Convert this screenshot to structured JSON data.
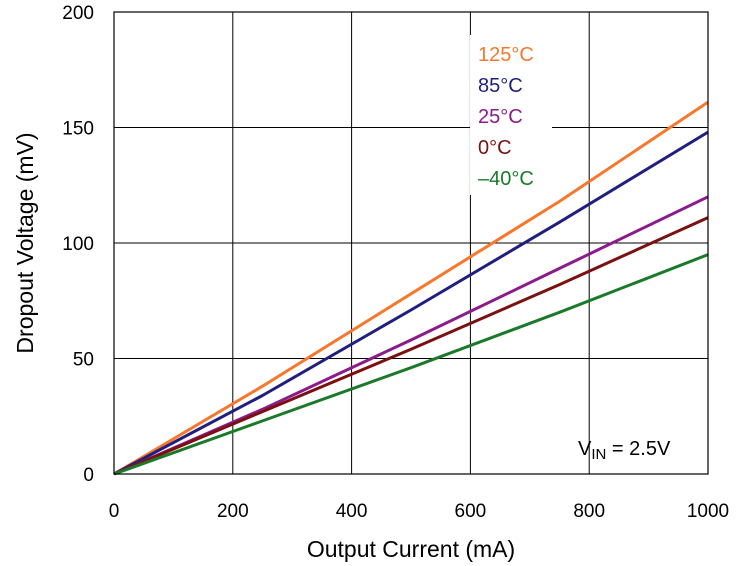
{
  "chart_data": {
    "type": "line",
    "title": "",
    "xlabel": "Output Current (mA)",
    "ylabel": "Dropout Voltage (mV)",
    "xlim": [
      0,
      1000
    ],
    "ylim": [
      0,
      200
    ],
    "xticks": [
      "0",
      "200",
      "400",
      "600",
      "800",
      "1000"
    ],
    "yticks": [
      "0",
      "50",
      "100",
      "150",
      "200"
    ],
    "grid": true,
    "legend_position": "top-right",
    "annotation": {
      "main": "V",
      "sub": "IN",
      "rest": " = 2.5V"
    },
    "series": [
      {
        "name": "125°C",
        "color": "#F7782D",
        "x": [
          0,
          250,
          500,
          750,
          1000
        ],
        "y": [
          0,
          38,
          78,
          118,
          161
        ]
      },
      {
        "name": "85°C",
        "color": "#1F1F7F",
        "x": [
          0,
          250,
          500,
          750,
          1000
        ],
        "y": [
          0,
          34,
          71,
          109,
          148
        ]
      },
      {
        "name": "25°C",
        "color": "#8B1A8B",
        "x": [
          0,
          250,
          500,
          750,
          1000
        ],
        "y": [
          0,
          28,
          58,
          89,
          120
        ]
      },
      {
        "name": "0°C",
        "color": "#7A1010",
        "x": [
          0,
          250,
          500,
          750,
          1000
        ],
        "y": [
          0,
          27,
          54,
          82,
          111
        ]
      },
      {
        "name": "–40°C",
        "color": "#1A7A2A",
        "x": [
          0,
          250,
          500,
          750,
          1000
        ],
        "y": [
          0,
          23,
          46,
          70,
          95
        ]
      }
    ]
  }
}
